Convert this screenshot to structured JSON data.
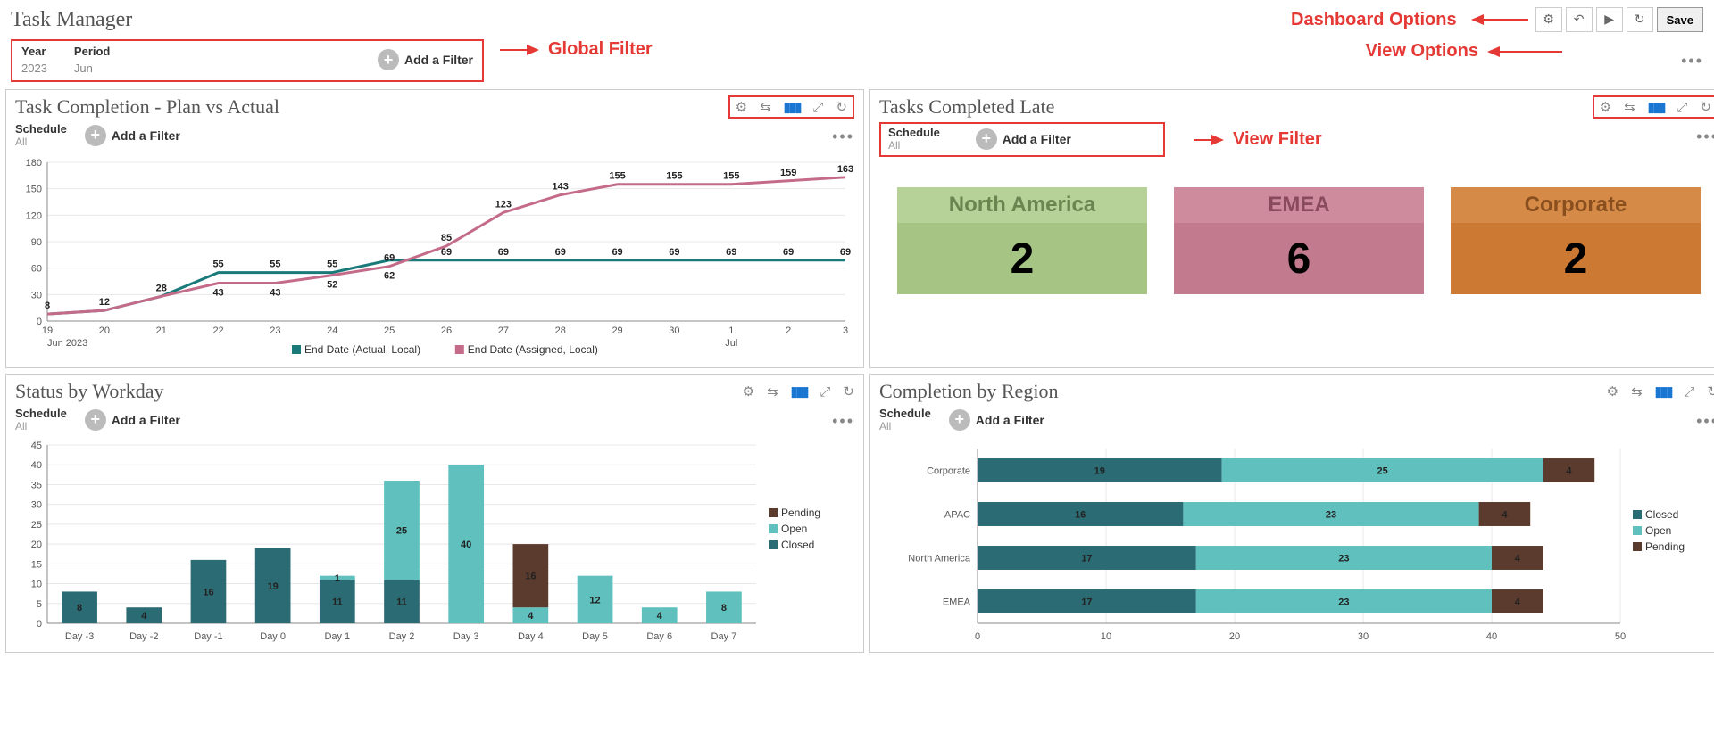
{
  "page_title": "Task Manager",
  "annotations": {
    "global_filter": "Global Filter",
    "dashboard_options": "Dashboard Options",
    "view_options": "View Options",
    "view_filter": "View Filter"
  },
  "dashboard_toolbar": {
    "save_label": "Save"
  },
  "global_filter": {
    "year_label": "Year",
    "year_value": "2023",
    "period_label": "Period",
    "period_value": "Jun",
    "add_filter": "Add a Filter"
  },
  "panels": {
    "plan_vs_actual": {
      "title": "Task Completion - Plan vs Actual",
      "schedule_label": "Schedule",
      "schedule_value": "All",
      "add_filter": "Add a Filter",
      "chart": {
        "type": "line",
        "ylim": [
          0,
          180
        ],
        "ytick_step": 30,
        "x_labels": [
          "19",
          "20",
          "21",
          "22",
          "23",
          "24",
          "25",
          "26",
          "27",
          "28",
          "29",
          "30",
          "1",
          "2",
          "3"
        ],
        "x_sub_left": "Jun 2023",
        "x_sub_right": "Jul",
        "series": [
          {
            "name": "End Date (Actual, Local)",
            "color": "#1a7a7a",
            "values": [
              8,
              12,
              28,
              55,
              55,
              55,
              69,
              69,
              69,
              69,
              69,
              69,
              69,
              69,
              69
            ]
          },
          {
            "name": "End Date (Assigned, Local)",
            "color": "#c56b8a",
            "values": [
              8,
              12,
              28,
              43,
              43,
              52,
              62,
              85,
              123,
              143,
              155,
              155,
              155,
              159,
              163
            ]
          }
        ],
        "point_labels_top": [
          null,
          null,
          null,
          null,
          null,
          null,
          "69",
          "85",
          "123",
          "143",
          "155",
          "155",
          "155",
          "159",
          "163"
        ],
        "point_labels_bot": [
          "8",
          "12",
          "28",
          "55",
          "55",
          "55",
          null,
          "69",
          "69",
          "69",
          "69",
          "69",
          "69",
          "69",
          "69"
        ],
        "extra_labels_mid": {
          "22": "43",
          "23": "43",
          "24": "52",
          "25": "62"
        },
        "background_color": "#ffffff",
        "grid_color": "#e8e8e8",
        "line_width": 3
      }
    },
    "tasks_late": {
      "title": "Tasks Completed Late",
      "schedule_label": "Schedule",
      "schedule_value": "All",
      "add_filter": "Add a Filter",
      "cards": [
        {
          "label": "North America",
          "value": "2",
          "bg": "#a6c585",
          "label_color": "#6a8550",
          "label_bg": "#b6d298"
        },
        {
          "label": "EMEA",
          "value": "6",
          "bg": "#c27a8f",
          "label_color": "#8a4a5e",
          "label_bg": "#cd8b9d"
        },
        {
          "label": "Corporate",
          "value": "2",
          "bg": "#cc7a33",
          "label_color": "#8a4f1e",
          "label_bg": "#d68a47"
        }
      ]
    },
    "status_workday": {
      "title": "Status by Workday",
      "schedule_label": "Schedule",
      "schedule_value": "All",
      "add_filter": "Add a Filter",
      "chart": {
        "type": "stacked-bar",
        "ylim": [
          0,
          45
        ],
        "ytick_step": 5,
        "categories": [
          "Day -3",
          "Day -2",
          "Day -1",
          "Day 0",
          "Day 1",
          "Day 2",
          "Day 3",
          "Day 4",
          "Day 5",
          "Day 6",
          "Day 7"
        ],
        "series": [
          {
            "name": "Pending",
            "color": "#5a3b2e"
          },
          {
            "name": "Open",
            "color": "#5fc0bd"
          },
          {
            "name": "Closed",
            "color": "#2a6b74"
          }
        ],
        "stacks": [
          {
            "closed": 8,
            "open": 0,
            "pending": 0
          },
          {
            "closed": 4,
            "open": 0,
            "pending": 0
          },
          {
            "closed": 16,
            "open": 0,
            "pending": 0
          },
          {
            "closed": 19,
            "open": 0,
            "pending": 0
          },
          {
            "closed": 11,
            "open": 1,
            "pending": 0
          },
          {
            "closed": 11,
            "open": 25,
            "pending": 0
          },
          {
            "closed": 0,
            "open": 40,
            "pending": 0
          },
          {
            "closed": 0,
            "open": 4,
            "pending": 16
          },
          {
            "closed": 0,
            "open": 12,
            "pending": 0
          },
          {
            "closed": 0,
            "open": 4,
            "pending": 0
          },
          {
            "closed": 0,
            "open": 8,
            "pending": 0
          }
        ],
        "bar_width": 0.55
      }
    },
    "completion_region": {
      "title": "Completion by Region",
      "schedule_label": "Schedule",
      "schedule_value": "All",
      "add_filter": "Add a Filter",
      "chart": {
        "type": "stacked-hbar",
        "xlim": [
          0,
          50
        ],
        "xtick_step": 10,
        "categories": [
          "Corporate",
          "APAC",
          "North America",
          "EMEA"
        ],
        "series": [
          {
            "name": "Closed",
            "color": "#2a6b74"
          },
          {
            "name": "Open",
            "color": "#5fc0bd"
          },
          {
            "name": "Pending",
            "color": "#5a3b2e"
          }
        ],
        "rows": [
          {
            "closed": 19,
            "open": 25,
            "pending": 4
          },
          {
            "closed": 16,
            "open": 23,
            "pending": 4
          },
          {
            "closed": 17,
            "open": 23,
            "pending": 4
          },
          {
            "closed": 17,
            "open": 23,
            "pending": 4
          }
        ],
        "bar_height": 0.55
      }
    }
  }
}
